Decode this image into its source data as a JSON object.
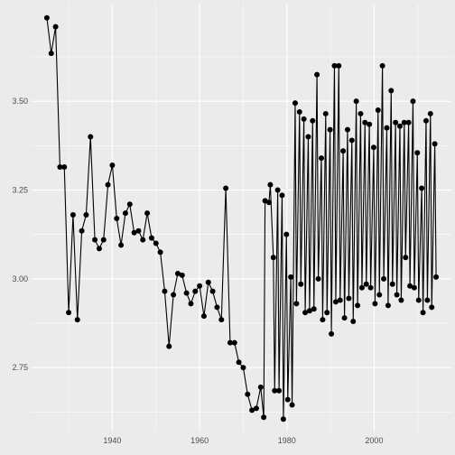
{
  "chart_data": {
    "type": "line",
    "title": "",
    "xlabel": "",
    "ylabel": "",
    "xlim": [
      1921.5,
      2017.7
    ],
    "ylim": [
      2.57,
      3.775
    ],
    "x_ticks": [
      1940,
      1960,
      1980,
      2000
    ],
    "y_ticks": [
      2.75,
      3.0,
      3.25,
      3.5
    ],
    "x_tick_labels": [
      "1940",
      "1960",
      "1980",
      "2000"
    ],
    "y_tick_labels": [
      "2.75",
      "3.00",
      "3.25",
      "3.50"
    ],
    "grid": true,
    "background": "#ebebeb",
    "grid_color": "#ffffff",
    "line_color": "#000000",
    "point_color": "#000000",
    "series": [
      {
        "points": [
          [
            1925.0,
            3.735
          ],
          [
            1926.0,
            3.635
          ],
          [
            1927.0,
            3.71
          ],
          [
            1928.0,
            3.315
          ],
          [
            1929.0,
            3.315
          ],
          [
            1930.0,
            2.905
          ],
          [
            1931.0,
            3.18
          ],
          [
            1932.0,
            2.885
          ],
          [
            1933.0,
            3.135
          ],
          [
            1934.0,
            3.18
          ],
          [
            1935.0,
            3.4
          ],
          [
            1936.0,
            3.11
          ],
          [
            1937.0,
            3.085
          ],
          [
            1938.0,
            3.11
          ],
          [
            1939.0,
            3.265
          ],
          [
            1940.0,
            3.32
          ],
          [
            1941.0,
            3.17
          ],
          [
            1942.0,
            3.095
          ],
          [
            1943.0,
            3.185
          ],
          [
            1944.0,
            3.21
          ],
          [
            1945.0,
            3.13
          ],
          [
            1946.0,
            3.135
          ],
          [
            1947.0,
            3.11
          ],
          [
            1948.0,
            3.185
          ],
          [
            1949.0,
            3.115
          ],
          [
            1950.0,
            3.1
          ],
          [
            1951.0,
            3.075
          ],
          [
            1952.0,
            2.965
          ],
          [
            1953.0,
            2.81
          ],
          [
            1954.0,
            2.955
          ],
          [
            1955.0,
            3.015
          ],
          [
            1956.0,
            3.01
          ],
          [
            1957.0,
            2.96
          ],
          [
            1958.0,
            2.93
          ],
          [
            1959.0,
            2.965
          ],
          [
            1960.0,
            2.98
          ],
          [
            1961.0,
            2.895
          ],
          [
            1962.0,
            2.99
          ],
          [
            1963.0,
            2.965
          ],
          [
            1964.0,
            2.92
          ],
          [
            1965.0,
            2.885
          ],
          [
            1966.0,
            3.255
          ],
          [
            1967.0,
            2.82
          ],
          [
            1968.0,
            2.82
          ],
          [
            1969.0,
            2.765
          ],
          [
            1970.0,
            2.75
          ],
          [
            1971.0,
            2.675
          ],
          [
            1972.0,
            2.63
          ],
          [
            1973.0,
            2.635
          ],
          [
            1974.0,
            2.695
          ],
          [
            1974.7,
            2.61
          ],
          [
            1975.0,
            3.22
          ],
          [
            1975.9,
            3.215
          ],
          [
            1976.2,
            3.265
          ],
          [
            1976.9,
            3.06
          ],
          [
            1977.2,
            2.685
          ],
          [
            1977.9,
            3.25
          ],
          [
            1978.2,
            2.685
          ],
          [
            1978.9,
            3.235
          ],
          [
            1979.2,
            2.605
          ],
          [
            1979.9,
            3.125
          ],
          [
            1980.2,
            2.66
          ],
          [
            1980.9,
            3.005
          ],
          [
            1981.2,
            2.645
          ],
          [
            1981.9,
            3.495
          ],
          [
            1982.2,
            2.93
          ],
          [
            1982.9,
            3.47
          ],
          [
            1983.2,
            2.985
          ],
          [
            1983.9,
            3.45
          ],
          [
            1984.2,
            2.905
          ],
          [
            1984.9,
            3.4
          ],
          [
            1985.2,
            2.91
          ],
          [
            1985.9,
            3.445
          ],
          [
            1986.2,
            2.915
          ],
          [
            1986.9,
            3.575
          ],
          [
            1987.2,
            3.0
          ],
          [
            1987.9,
            3.34
          ],
          [
            1988.2,
            2.885
          ],
          [
            1988.9,
            3.465
          ],
          [
            1989.2,
            2.905
          ],
          [
            1989.9,
            3.42
          ],
          [
            1990.2,
            2.845
          ],
          [
            1990.9,
            3.6
          ],
          [
            1991.2,
            2.935
          ],
          [
            1991.9,
            3.6
          ],
          [
            1992.2,
            2.94
          ],
          [
            1992.9,
            3.36
          ],
          [
            1993.2,
            2.89
          ],
          [
            1993.9,
            3.42
          ],
          [
            1994.2,
            2.945
          ],
          [
            1994.9,
            3.39
          ],
          [
            1995.2,
            2.88
          ],
          [
            1995.9,
            3.5
          ],
          [
            1996.2,
            2.925
          ],
          [
            1996.9,
            3.465
          ],
          [
            1997.2,
            2.975
          ],
          [
            1997.9,
            3.44
          ],
          [
            1998.2,
            2.985
          ],
          [
            1998.9,
            3.435
          ],
          [
            1999.2,
            2.975
          ],
          [
            1999.9,
            3.37
          ],
          [
            2000.2,
            2.93
          ],
          [
            2000.9,
            3.475
          ],
          [
            2001.2,
            2.955
          ],
          [
            2001.9,
            3.6
          ],
          [
            2002.2,
            3.0
          ],
          [
            2002.9,
            3.425
          ],
          [
            2003.2,
            2.925
          ],
          [
            2003.9,
            3.53
          ],
          [
            2004.2,
            2.985
          ],
          [
            2004.9,
            3.44
          ],
          [
            2005.2,
            2.955
          ],
          [
            2005.9,
            3.43
          ],
          [
            2006.2,
            2.94
          ],
          [
            2006.9,
            3.44
          ],
          [
            2007.2,
            3.06
          ],
          [
            2007.9,
            3.44
          ],
          [
            2008.2,
            2.98
          ],
          [
            2008.9,
            3.5
          ],
          [
            2009.2,
            2.975
          ],
          [
            2009.9,
            3.355
          ],
          [
            2010.2,
            2.94
          ],
          [
            2010.9,
            3.255
          ],
          [
            2011.2,
            2.905
          ],
          [
            2011.9,
            3.445
          ],
          [
            2012.2,
            2.94
          ],
          [
            2012.9,
            3.465
          ],
          [
            2013.2,
            2.92
          ],
          [
            2013.9,
            3.38
          ],
          [
            2014.2,
            3.005
          ]
        ]
      }
    ]
  }
}
